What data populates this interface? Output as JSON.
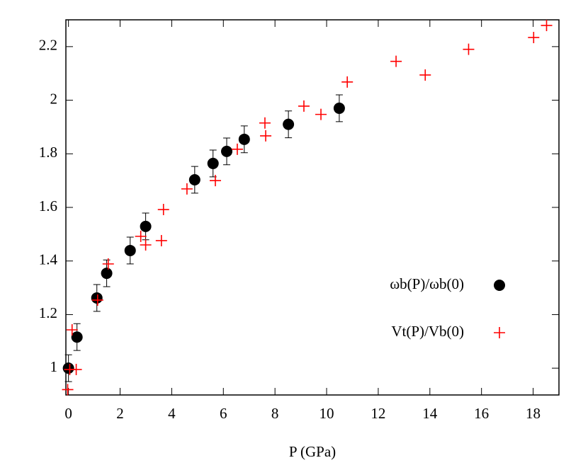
{
  "chart_data": {
    "type": "scatter",
    "x_label": "P (GPa)",
    "xlim": [
      -0.1,
      19
    ],
    "ylim": [
      0.9,
      2.3
    ],
    "xticks": [
      0,
      2,
      4,
      6,
      8,
      10,
      12,
      14,
      16,
      18
    ],
    "yticks": [
      1,
      1.2,
      1.4,
      1.6,
      1.8,
      2,
      2.2
    ],
    "legend": "lower-right",
    "series": [
      {
        "name": "ωb(P)/ωb(0)",
        "color": "#000000",
        "marker": "circle",
        "x": [
          0,
          0.33,
          1.1,
          1.48,
          2.39,
          2.99,
          4.89,
          5.6,
          6.13,
          6.81,
          8.52,
          10.49
        ],
        "values": [
          1.0,
          1.116,
          1.262,
          1.354,
          1.439,
          1.529,
          1.703,
          1.764,
          1.809,
          1.854,
          1.91,
          1.97
        ],
        "errors": [
          0.05,
          0.05,
          0.05,
          0.05,
          0.05,
          0.05,
          0.05,
          0.05,
          0.05,
          0.05,
          0.05,
          0.05
        ]
      },
      {
        "name": "Vt(P)/Vb(0)",
        "color": "#ff0000",
        "marker": "plus",
        "x": [
          -0.03,
          0.05,
          0.3,
          0.14,
          1.13,
          1.54,
          2.8,
          2.99,
          3.6,
          3.68,
          4.59,
          5.69,
          6.54,
          7.64,
          7.61,
          9.12,
          9.78,
          10.8,
          12.69,
          13.82,
          15.5,
          18.02,
          18.52
        ],
        "values": [
          0.92,
          0.995,
          0.995,
          1.143,
          1.254,
          1.389,
          1.492,
          1.46,
          1.476,
          1.592,
          1.669,
          1.7,
          1.817,
          1.867,
          1.915,
          1.978,
          1.947,
          2.068,
          2.145,
          2.094,
          2.19,
          2.234,
          2.279
        ]
      }
    ]
  }
}
